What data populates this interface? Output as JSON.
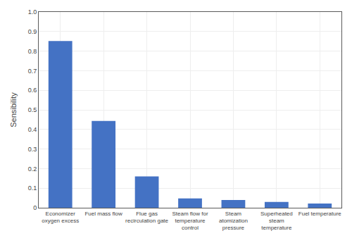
{
  "chart_data": {
    "type": "bar",
    "categories": [
      "Economizer\noxygen excess",
      "Fuel mass flow",
      "Flue gas\nrecirculation gate",
      "Steam flow for\ntemperature\ncontrol",
      "Steam\natomization\npressure",
      "Superheated\nsteam\ntemperature",
      "Fuel temperature"
    ],
    "values": [
      0.852,
      0.443,
      0.16,
      0.048,
      0.04,
      0.03,
      0.022
    ],
    "color": "#4472C4",
    "ylabel": "Sensibility",
    "ylim": [
      0,
      1.0
    ],
    "yticks": [
      0,
      0.1,
      0.2,
      0.3,
      0.4,
      0.5,
      0.6,
      0.7,
      0.8,
      0.9,
      {
        "value": 1.0,
        "label": "1.0"
      }
    ],
    "grid": true
  }
}
